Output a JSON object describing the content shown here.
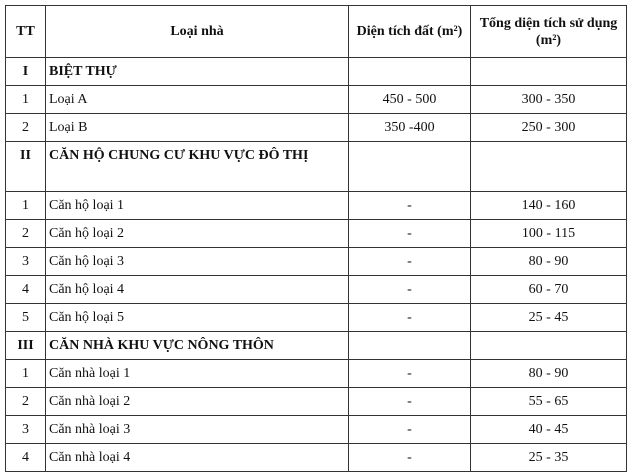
{
  "header": {
    "tt": "TT",
    "type": "Loại nhà",
    "land_area": "Diện tích đất (m²)",
    "total_area": "Tổng diện tích sử dụng (m²)"
  },
  "sections": [
    {
      "num": "I",
      "title": "BIỆT THỰ",
      "rows": [
        {
          "tt": "1",
          "type": "Loại A",
          "land": "450 - 500",
          "total": "300 - 350"
        },
        {
          "tt": "2",
          "type": "Loại B",
          "land": "350 -400",
          "total": "250 - 300"
        }
      ]
    },
    {
      "num": "II",
      "title": "CĂN HỘ CHUNG CƯ KHU VỰC ĐÔ THỊ",
      "rows": [
        {
          "tt": "1",
          "type": "Căn hộ loại 1",
          "land": "-",
          "total": "140 - 160"
        },
        {
          "tt": "2",
          "type": "Căn hộ loại 2",
          "land": "-",
          "total": "100 - 115"
        },
        {
          "tt": "3",
          "type": "Căn hộ loại 3",
          "land": "-",
          "total": "80 - 90"
        },
        {
          "tt": "4",
          "type": "Căn hộ loại 4",
          "land": "-",
          "total": "60 - 70"
        },
        {
          "tt": "5",
          "type": "Căn hộ loại 5",
          "land": "-",
          "total": "25 - 45"
        }
      ]
    },
    {
      "num": "III",
      "title": "CĂN NHÀ KHU VỰC NÔNG THÔN",
      "rows": [
        {
          "tt": "1",
          "type": "Căn nhà loại 1",
          "land": "-",
          "total": "80 - 90"
        },
        {
          "tt": "2",
          "type": "Căn nhà loại 2",
          "land": "-",
          "total": "55 - 65"
        },
        {
          "tt": "3",
          "type": "Căn nhà loại 3",
          "land": "-",
          "total": "40 - 45"
        },
        {
          "tt": "4",
          "type": "Căn nhà loại 4",
          "land": "-",
          "total": "25 - 35"
        }
      ]
    }
  ]
}
